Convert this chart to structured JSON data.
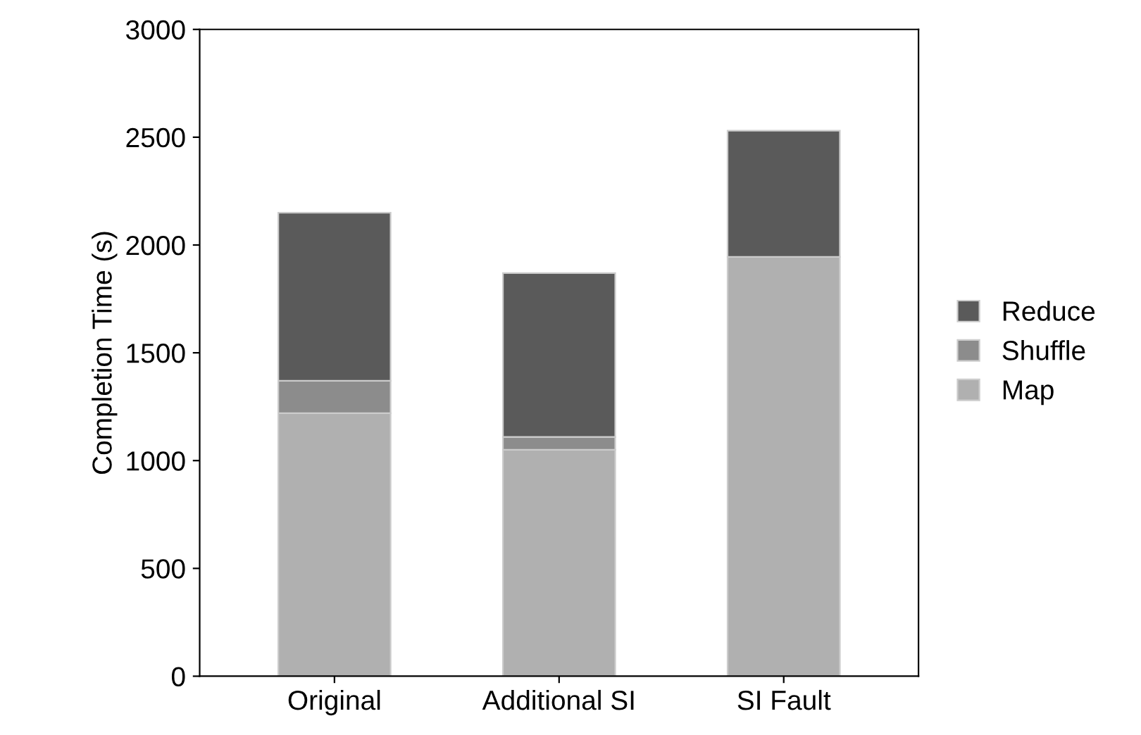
{
  "chart_data": {
    "type": "bar",
    "stacked": true,
    "ylabel": "Completion Time (s)",
    "categories": [
      "Original",
      "Additional SI",
      "SI Fault"
    ],
    "series": [
      {
        "name": "Map",
        "color": "#b0b0b0",
        "values": [
          1220,
          1050,
          1945
        ]
      },
      {
        "name": "Shuffle",
        "color": "#8c8c8c",
        "values": [
          150,
          60,
          0
        ]
      },
      {
        "name": "Reduce",
        "color": "#5a5a5a",
        "values": [
          780,
          760,
          585
        ]
      }
    ],
    "ylim": [
      0,
      3000
    ],
    "yticks": [
      0,
      500,
      1000,
      1500,
      2000,
      2500,
      3000
    ],
    "grid": false,
    "legend": "right"
  }
}
